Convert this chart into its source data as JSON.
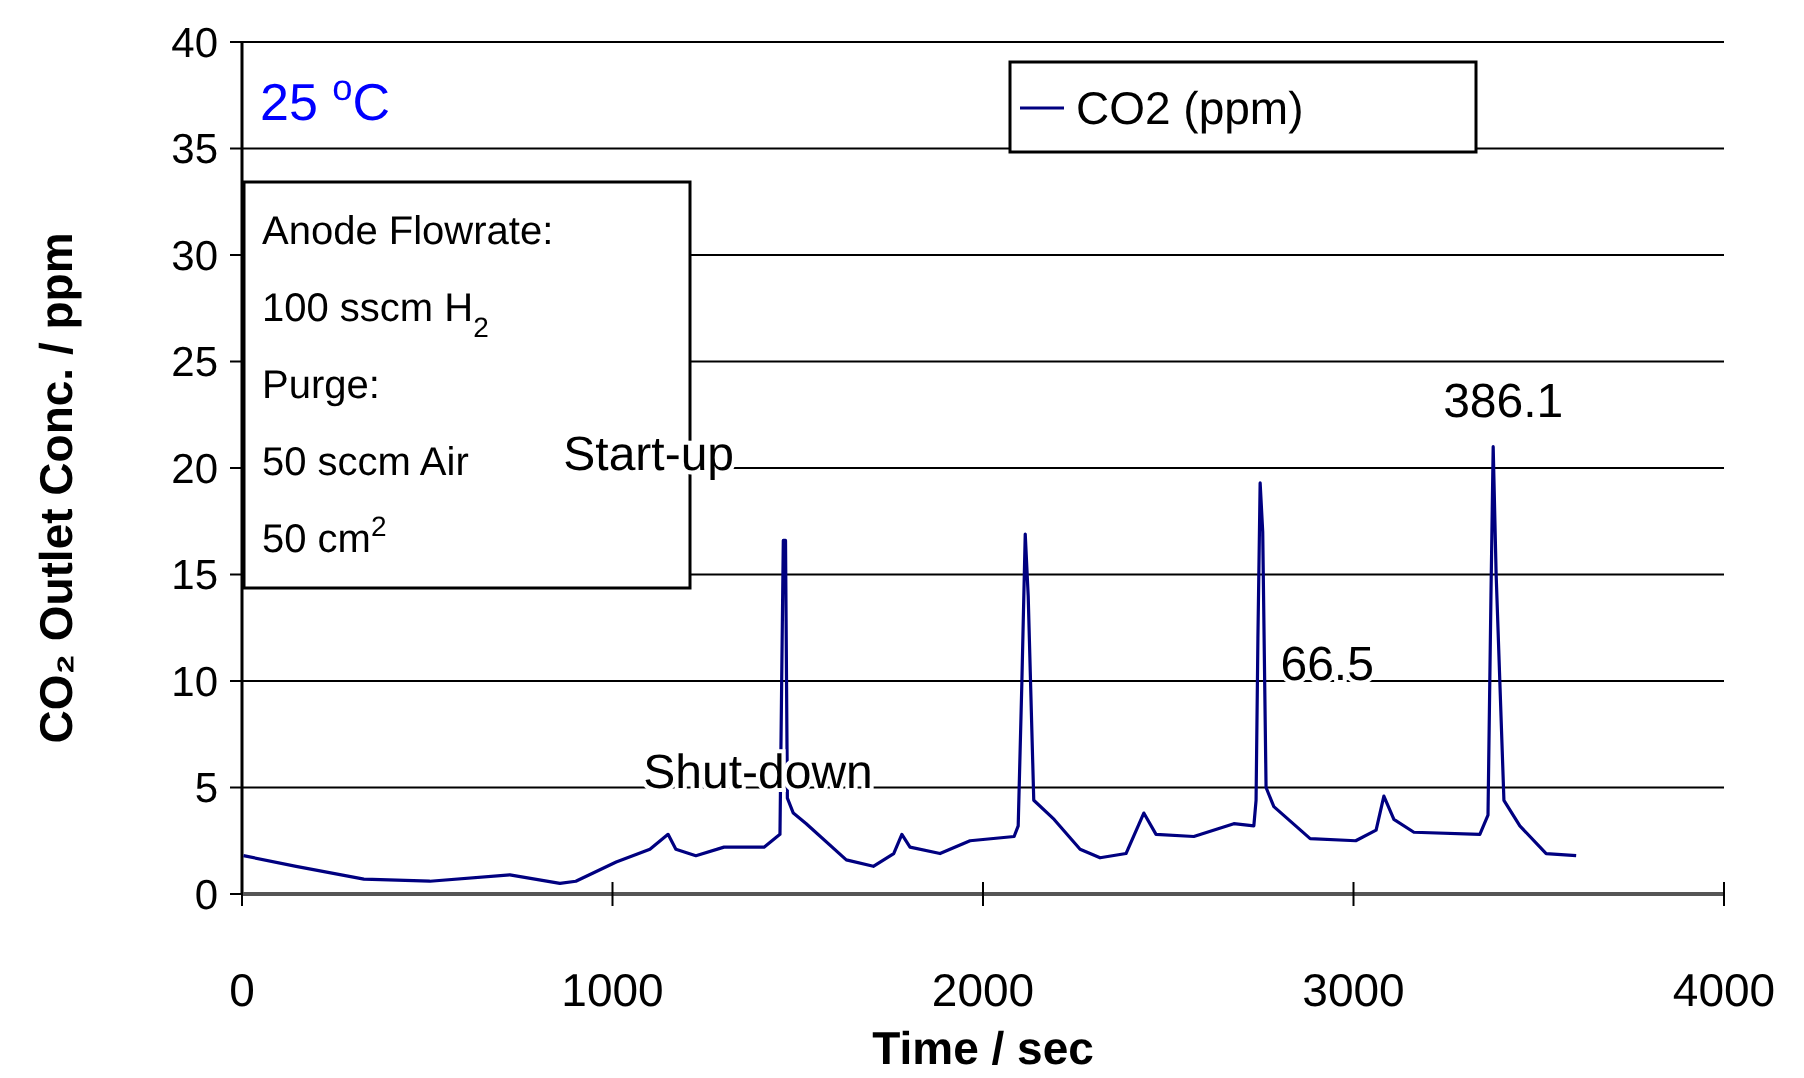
{
  "chart_data": {
    "type": "line",
    "xlabel": "Time / sec",
    "ylabel": "CO₂ Outlet Conc. / ppm",
    "xlim": [
      0,
      4000
    ],
    "xticks": [
      0,
      1000,
      2000,
      3000,
      4000
    ],
    "ylim": [
      0,
      40
    ],
    "yticks": [
      0,
      5,
      10,
      15,
      20,
      25,
      30,
      35,
      40
    ],
    "grid": "y",
    "legend": "top right",
    "annotations": [
      "25 $^{o}$C",
      "Anode Flowrate:",
      "100 sscm H$_{2}$",
      "Purge:",
      "50 sccm Air",
      "50 cm$^{2}$",
      {
        "text": "Start-up",
        "x": 1461,
        "y": 16.6
      },
      {
        "text": "Shut-down",
        "x": 1150,
        "y": 2.9
      },
      {
        "text": "66.5",
        "x": 3082,
        "y": 4.6
      },
      {
        "text": "386.1",
        "x": 3377,
        "y": 21.0
      }
    ],
    "series": [
      {
        "name": "CO2 (ppm)",
        "color": "#000080",
        "x": [
          4,
          146,
          329,
          507,
          723,
          858,
          901,
          1010,
          1101,
          1150,
          1171,
          1225,
          1301,
          1409,
          1452,
          1456,
          1461,
          1467,
          1472,
          1488,
          1523,
          1631,
          1704,
          1759,
          1781,
          1803,
          1884,
          1965,
          2084,
          2095,
          2105,
          2114,
          2122,
          2137,
          2192,
          2262,
          2316,
          2386,
          2434,
          2467,
          2569,
          2677,
          2731,
          2737,
          2742,
          2748,
          2755,
          2764,
          2785,
          2883,
          3006,
          3061,
          3082,
          3109,
          3163,
          3341,
          3363,
          3371,
          3377,
          3385,
          3406,
          3449,
          3520,
          3601
        ],
        "values": [
          1.8,
          1.3,
          0.7,
          0.6,
          0.9,
          0.5,
          0.6,
          1.5,
          2.1,
          2.8,
          2.1,
          1.8,
          2.2,
          2.2,
          2.8,
          9.0,
          16.6,
          16.6,
          4.5,
          3.8,
          3.3,
          1.6,
          1.3,
          1.9,
          2.8,
          2.2,
          1.9,
          2.5,
          2.7,
          3.2,
          10.0,
          16.9,
          14.0,
          4.4,
          3.5,
          2.1,
          1.7,
          1.9,
          3.8,
          2.8,
          2.7,
          3.3,
          3.2,
          4.4,
          12.0,
          19.3,
          17.0,
          5.0,
          4.1,
          2.6,
          2.5,
          3.0,
          4.6,
          3.5,
          2.9,
          2.8,
          3.7,
          14.0,
          21.0,
          15.0,
          4.4,
          3.2,
          1.9,
          1.8
        ]
      }
    ]
  }
}
